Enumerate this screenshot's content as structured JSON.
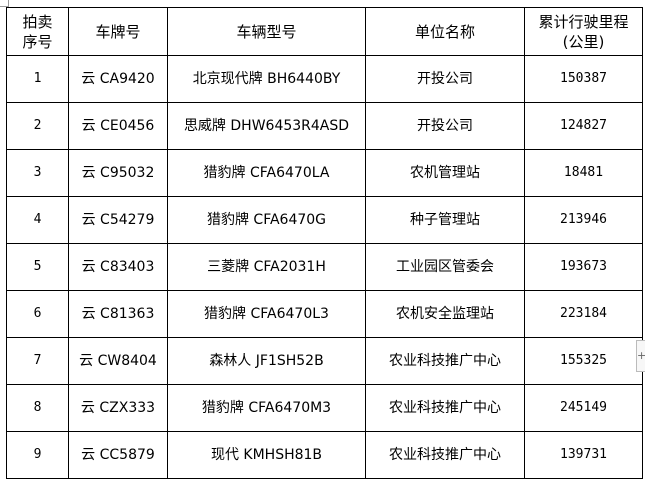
{
  "headers": {
    "seq": "拍卖\n序号",
    "plate": "车牌号",
    "model": "车辆型号",
    "unit": "单位名称",
    "mileage": "累计行驶里程\n(公里)"
  },
  "rows": [
    {
      "seq": "1",
      "plate": "云 CA9420",
      "model": "北京现代牌 BH6440BY",
      "unit": "开投公司",
      "mileage": "150387"
    },
    {
      "seq": "2",
      "plate": "云 CE0456",
      "model": "思威牌 DHW6453R4ASD",
      "unit": "开投公司",
      "mileage": "124827"
    },
    {
      "seq": "3",
      "plate": "云 C95032",
      "model": "猎豹牌 CFA6470LA",
      "unit": "农机管理站",
      "mileage": "18481"
    },
    {
      "seq": "4",
      "plate": "云 C54279",
      "model": "猎豹牌 CFA6470G",
      "unit": "种子管理站",
      "mileage": "213946"
    },
    {
      "seq": "5",
      "plate": "云 C83403",
      "model": "三菱牌 CFA2031H",
      "unit": "工业园区管委会",
      "mileage": "193673"
    },
    {
      "seq": "6",
      "plate": "云 C81363",
      "model": "猎豹牌 CFA6470L3",
      "unit": "农机安全监理站",
      "mileage": "223184"
    },
    {
      "seq": "7",
      "plate": "云 CW8404",
      "model": "森林人 JF1SH52B",
      "unit": "农业科技推广中心",
      "mileage": "155325"
    },
    {
      "seq": "8",
      "plate": "云 CZX333",
      "model": "猎豹牌 CFA6470M3",
      "unit": "农业科技推广中心",
      "mileage": "245149"
    },
    {
      "seq": "9",
      "plate": "云 CC5879",
      "model": "现代 KMHSH81B",
      "unit": "农业科技推广中心",
      "mileage": "139731"
    }
  ],
  "side_button": "+"
}
